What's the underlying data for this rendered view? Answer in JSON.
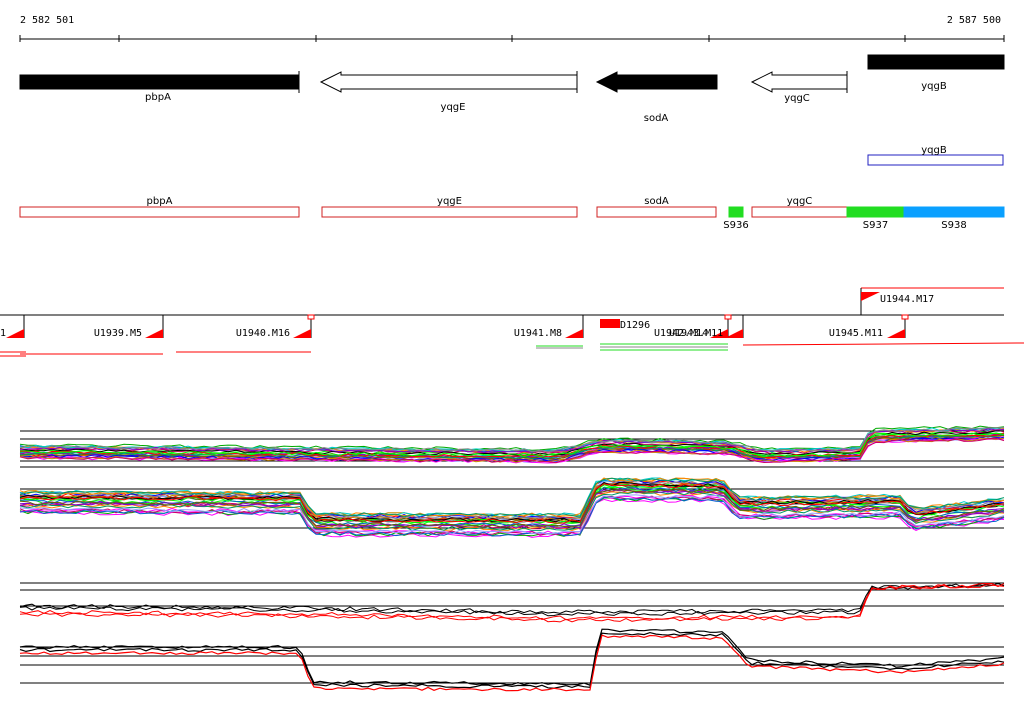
{
  "axis": {
    "start_label": "2 582 501",
    "end_label": "2 587 500",
    "start": 2582501,
    "end": 2587500
  },
  "colors": {
    "gene_fill": "#000000",
    "gene_outline": "#000000",
    "annot_outline": "#d02020",
    "annot_blue": "#2020c0",
    "green": "#22dd22",
    "blue": "#0aa0ff",
    "red": "#ff0000"
  },
  "genes": [
    {
      "label": "pbpA",
      "style": "solid",
      "direction": "right"
    },
    {
      "label": "yqgE",
      "style": "outline",
      "direction": "left"
    },
    {
      "label": "sodA",
      "style": "solid",
      "direction": "left"
    },
    {
      "label": "yqgC",
      "style": "outline",
      "direction": "left"
    },
    {
      "label": "yqgB",
      "style": "solid",
      "direction": "right"
    }
  ],
  "annotation_blue": [
    {
      "label": "yqgB"
    }
  ],
  "annotation_track": [
    {
      "label": "pbpA",
      "style": "outline"
    },
    {
      "label": "yqgE",
      "style": "outline"
    },
    {
      "label": "sodA",
      "style": "outline"
    },
    {
      "label": "S936",
      "style": "green"
    },
    {
      "label": "yqgC",
      "style": "outline"
    },
    {
      "label": "S937",
      "style": "green"
    },
    {
      "label": "S938",
      "style": "blue"
    }
  ],
  "segments": {
    "upper": [
      {
        "label": "U1944.M17"
      }
    ],
    "main": [
      {
        "label": "1"
      },
      {
        "label": "U1939.M5"
      },
      {
        "label": "U1940.M16"
      },
      {
        "label": "U1941.M8"
      },
      {
        "label": "D1296"
      },
      {
        "label": "U1942.M14"
      },
      {
        "label": "U1943.M11"
      },
      {
        "label": "U1945.M11"
      }
    ]
  }
}
